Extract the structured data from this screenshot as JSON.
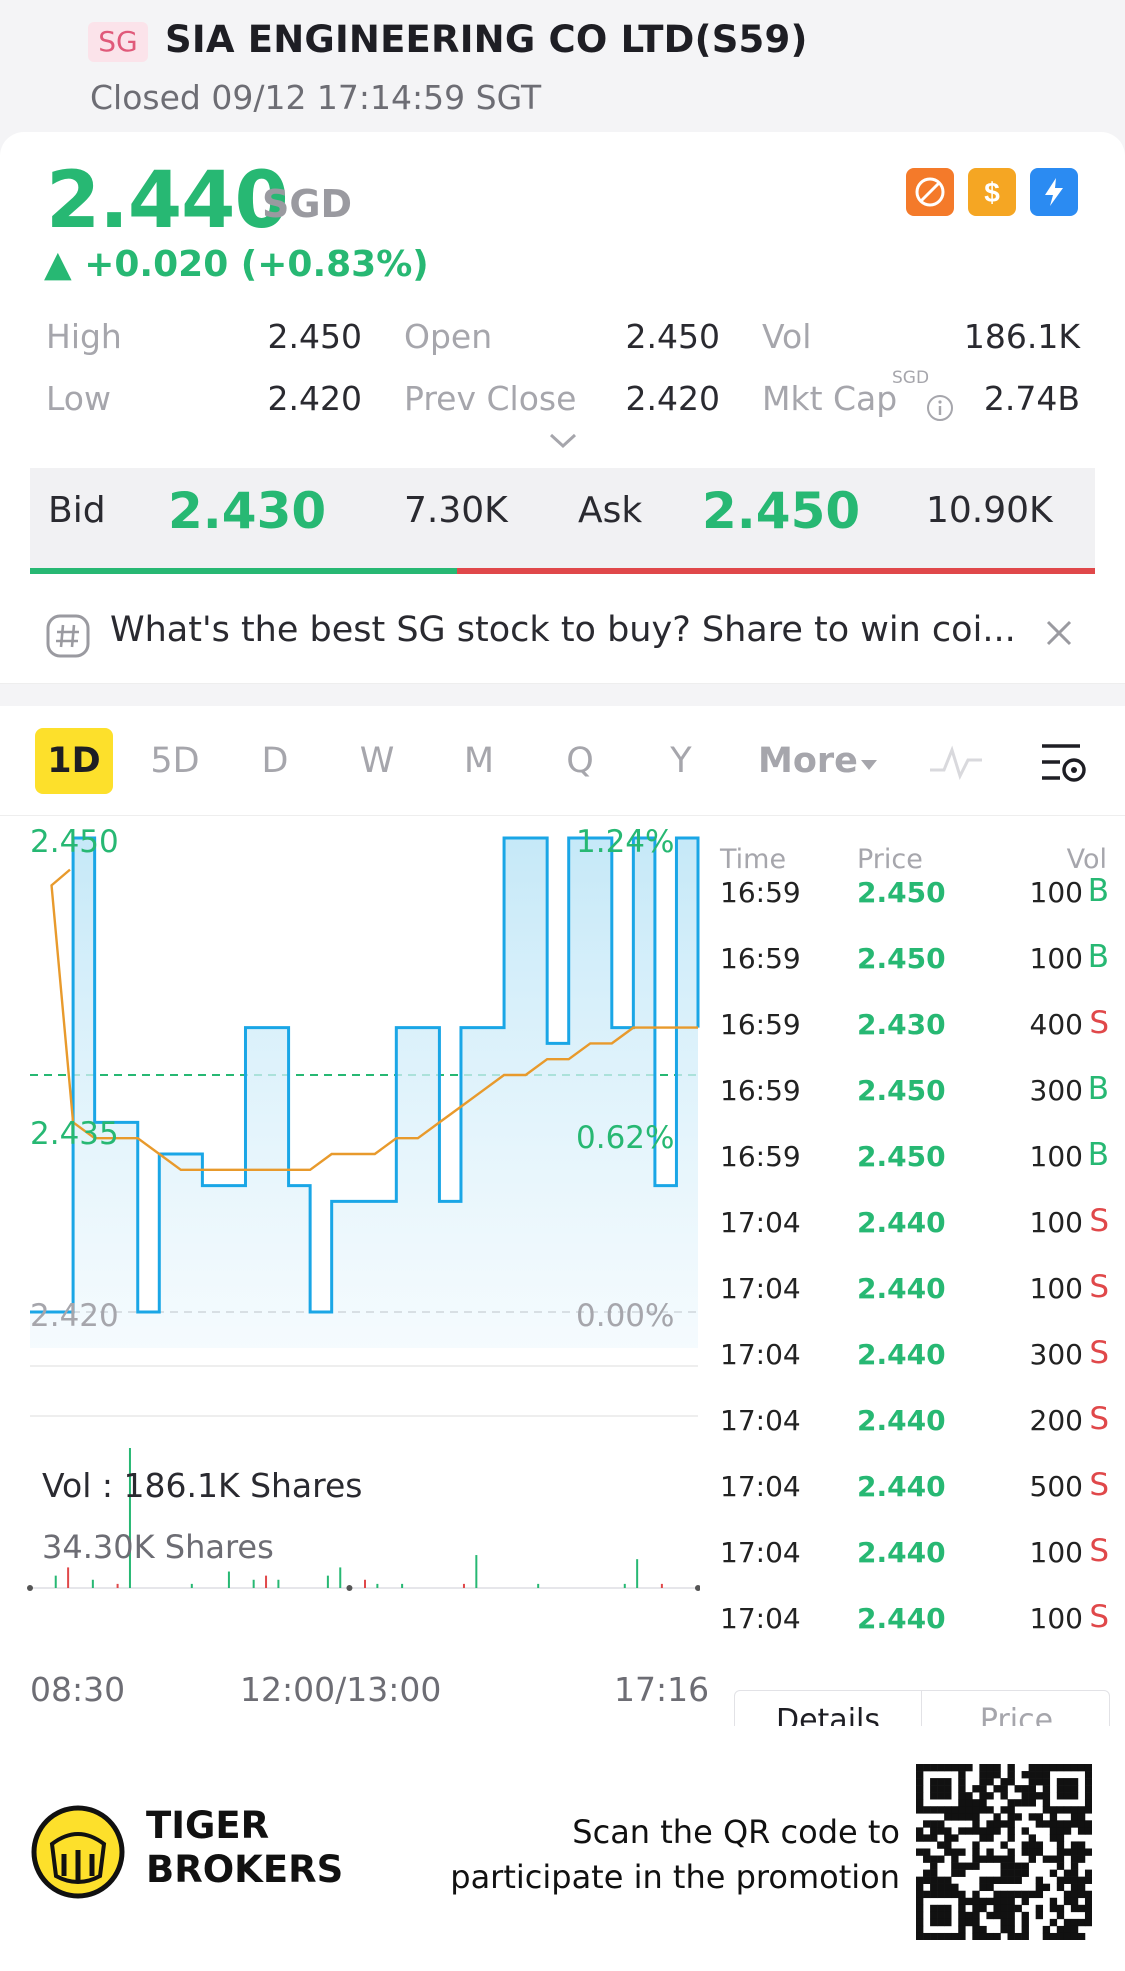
{
  "header": {
    "badge": "SG",
    "name": "SIA ENGINEERING CO LTD(S59)",
    "status": "Closed 09/12 17:14:59 SGT"
  },
  "quote": {
    "price": "2.440",
    "currency": "SGD",
    "change": "▲ +0.020 (+0.83%)",
    "stats": [
      {
        "label": "High",
        "value": "2.450"
      },
      {
        "label": "Open",
        "value": "2.450"
      },
      {
        "label": "Vol",
        "value": "186.1K"
      },
      {
        "label": "Low",
        "value": "2.420"
      },
      {
        "label": "Prev Close",
        "value": "2.420"
      },
      {
        "label": "Mkt Cap",
        "value": "2.74B"
      }
    ],
    "mkt_cap_super": "SGD",
    "icons": [
      "no-short-icon",
      "dividend-icon",
      "flash-icon"
    ]
  },
  "bidask": {
    "bid_label": "Bid",
    "bid_price": "2.430",
    "bid_size": "7.30K",
    "ask_label": "Ask",
    "ask_price": "2.450",
    "ask_size": "10.90K",
    "bid_ratio": 0.401
  },
  "promo": {
    "text": "What's the best SG stock to buy? Share to win coi..."
  },
  "tabs": [
    "1D",
    "5D",
    "D",
    "W",
    "M",
    "Q",
    "Y",
    "More"
  ],
  "chart": {
    "y_top": "2.450",
    "y_mid": "2.435",
    "y_bot": "2.420",
    "pct_top": "1.24%",
    "pct_mid": "0.62%",
    "pct_bot": "0.00%",
    "vol_label": "Vol :   186.1K Shares",
    "vol_max": "34.30K Shares",
    "time_start": "08:30",
    "time_mid": "12:00/13:00",
    "time_end": "17:16"
  },
  "chart_data": {
    "type": "line",
    "ylim": [
      2.42,
      2.45
    ],
    "y_ref": 2.435,
    "series": [
      {
        "values": [
          2.42,
          2.42,
          2.45,
          2.432,
          2.432,
          2.42,
          2.43,
          2.43,
          2.428,
          2.428,
          2.438,
          2.438,
          2.428,
          2.42,
          2.427,
          2.427,
          2.427,
          2.438,
          2.438,
          2.427,
          2.438,
          2.438,
          2.45,
          2.45,
          2.437,
          2.45,
          2.45,
          2.438,
          2.45,
          2.428,
          2.45,
          2.438
        ]
      },
      {
        "values": [
          2.448,
          2.447,
          2.432,
          2.431,
          2.431,
          2.431,
          2.43,
          2.429,
          2.429,
          2.429,
          2.429,
          2.429,
          2.429,
          2.429,
          2.43,
          2.43,
          2.43,
          2.431,
          2.431,
          2.432,
          2.433,
          2.434,
          2.435,
          2.435,
          2.436,
          2.436,
          2.437,
          2.437,
          2.438,
          2.438,
          2.438,
          2.438
        ]
      }
    ],
    "volume": [
      0,
      0,
      3,
      5,
      0,
      2,
      0,
      1,
      34,
      0,
      0,
      0,
      0,
      1,
      0,
      0,
      4,
      0,
      2,
      3,
      2,
      0,
      0,
      0,
      3,
      5,
      0,
      2,
      1,
      0,
      1,
      0,
      0,
      0,
      0,
      1,
      8,
      0,
      0,
      0,
      0,
      1,
      0,
      0,
      0,
      0,
      0,
      0,
      1,
      7,
      0,
      1,
      0,
      0,
      0
    ]
  },
  "trades": {
    "headers": [
      "Time",
      "Price",
      "Vol"
    ],
    "rows": [
      {
        "time": "16:59",
        "price": "2.450",
        "vol": "100",
        "side": "B"
      },
      {
        "time": "16:59",
        "price": "2.450",
        "vol": "100",
        "side": "B"
      },
      {
        "time": "16:59",
        "price": "2.430",
        "vol": "400",
        "side": "S"
      },
      {
        "time": "16:59",
        "price": "2.450",
        "vol": "300",
        "side": "B"
      },
      {
        "time": "16:59",
        "price": "2.450",
        "vol": "100",
        "side": "B"
      },
      {
        "time": "17:04",
        "price": "2.440",
        "vol": "100",
        "side": "S"
      },
      {
        "time": "17:04",
        "price": "2.440",
        "vol": "100",
        "side": "S"
      },
      {
        "time": "17:04",
        "price": "2.440",
        "vol": "300",
        "side": "S"
      },
      {
        "time": "17:04",
        "price": "2.440",
        "vol": "200",
        "side": "S"
      },
      {
        "time": "17:04",
        "price": "2.440",
        "vol": "500",
        "side": "S"
      },
      {
        "time": "17:04",
        "price": "2.440",
        "vol": "100",
        "side": "S"
      },
      {
        "time": "17:04",
        "price": "2.440",
        "vol": "100",
        "side": "S"
      }
    ],
    "details_btn": "Details",
    "price_btn": "Price"
  },
  "footer": {
    "brand_line1": "TIGER",
    "brand_line2": "BROKERS",
    "scan_line1": "Scan the QR code to",
    "scan_line2": "participate in the promotion"
  },
  "colors": {
    "up": "#27b873",
    "down": "#e0484a",
    "line": "#1aa6e6",
    "avg": "#e89a2c",
    "accent": "#fde02b"
  }
}
